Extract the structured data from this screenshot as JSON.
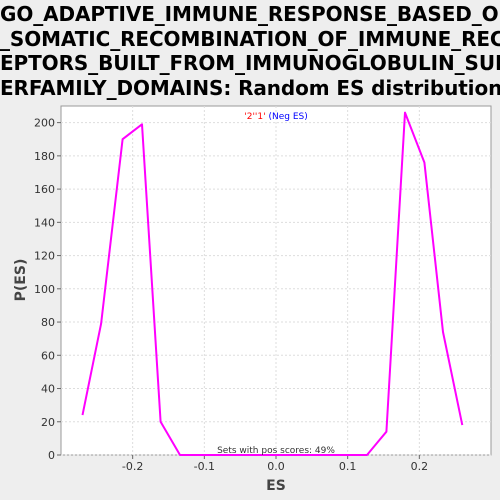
{
  "chart_data": {
    "type": "line",
    "title_lines": [
      "GO_ADAPTIVE_IMMUNE_RESPONSE_BASED_ON",
      "_SOMATIC_RECOMBINATION_OF_IMMUNE_REC",
      "EPTORS_BUILT_FROM_IMMUNOGLOBULIN_SUP",
      "ERFAMILY_DOMAINS: Random ES distribution"
    ],
    "xlabel": "ES",
    "ylabel": "P(ES)",
    "xlim": [
      -0.3,
      0.3
    ],
    "ylim": [
      0,
      210
    ],
    "x_ticks": [
      -0.2,
      -0.1,
      0.0,
      0.1,
      0.2
    ],
    "x_tick_labels": [
      "-0.2",
      "-0.1",
      "0.0",
      "0.1",
      "0.2"
    ],
    "y_ticks": [
      0,
      20,
      40,
      60,
      80,
      100,
      120,
      140,
      160,
      180,
      200
    ],
    "y_tick_labels": [
      "0",
      "20",
      "40",
      "60",
      "80",
      "100",
      "120",
      "140",
      "160",
      "180",
      "200"
    ],
    "grid": true,
    "legend": {
      "placement": "top-center",
      "label_part1": "'2''1'",
      "label_part2": " (Neg ES)",
      "color_part1": "#ff0000",
      "color_part2": "#0000ff"
    },
    "annotation": "Sets with pos scores: 49%",
    "series": [
      {
        "color": "#ff00ff",
        "x": [
          -0.27,
          -0.244,
          -0.214,
          -0.187,
          -0.161,
          -0.134,
          -0.108,
          -0.081,
          -0.055,
          -0.028,
          -0.002,
          0.025,
          0.051,
          0.078,
          0.104,
          0.127,
          0.154,
          0.18,
          0.207,
          0.233,
          0.26
        ],
        "y": [
          24,
          79,
          190,
          199,
          20,
          0,
          0,
          0,
          0,
          0,
          0,
          0,
          0,
          0,
          0,
          0,
          14,
          206,
          176,
          74,
          18
        ]
      }
    ]
  }
}
